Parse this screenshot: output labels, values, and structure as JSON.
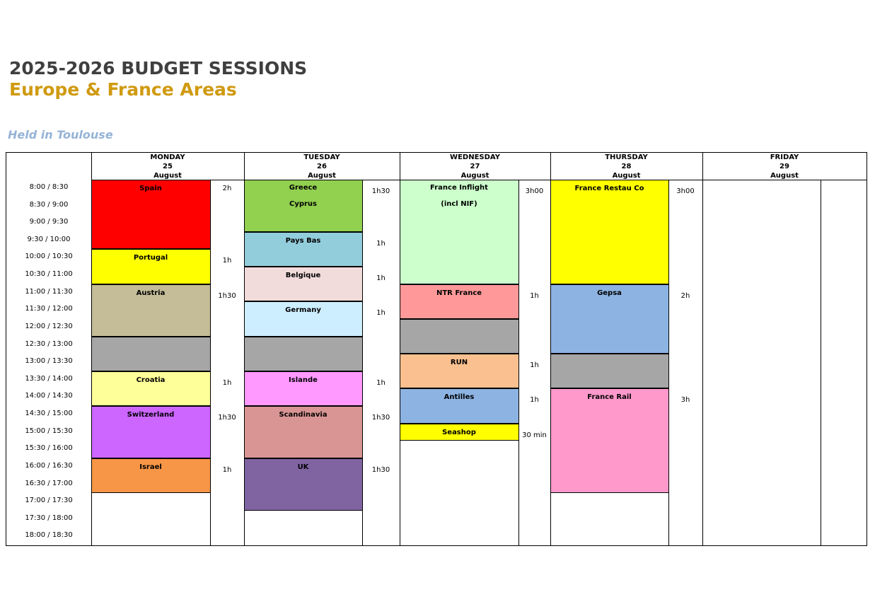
{
  "title": "2025-2026 BUDGET SESSIONS",
  "subtitle": "Europe & France Areas",
  "location": "Held in Toulouse",
  "times": [
    "8:00 / 8:30",
    "8:30 / 9:00",
    "9:00 / 9:30",
    "9:30 / 10:00",
    "10:00 / 10:30",
    "10:30 / 11:00",
    "11:00 / 11:30",
    "11:30 / 12:00",
    "12:00 / 12:30",
    "12:30 / 13:00",
    "13:00 / 13:30",
    "13:30 / 14:00",
    "14:00 / 14:30",
    "14:30 / 15:00",
    "15:00 / 15:30",
    "15:30 / 16:00",
    "16:00 / 16:30",
    "16:30 / 17:00",
    "17:00 / 17:30",
    "17:30 / 18:00",
    "18:00 / 18:30"
  ],
  "days": [
    {
      "day": "MONDAY",
      "date": "25",
      "month": "August",
      "sessions": [
        {
          "lines": [
            "Spain"
          ],
          "start": "8:00",
          "end": "10:00",
          "duration": "2h",
          "color": "#ff0000"
        },
        {
          "lines": [
            "Portugal"
          ],
          "start": "10:00",
          "end": "11:00",
          "duration": "1h",
          "color": "#ffff00"
        },
        {
          "lines": [
            "Austria"
          ],
          "start": "11:00",
          "end": "12:30",
          "duration": "1h30",
          "color": "#c4bd97"
        },
        {
          "lines": [],
          "start": "12:30",
          "end": "13:30",
          "duration": "",
          "color": "#a6a6a6"
        },
        {
          "lines": [
            "Croatia"
          ],
          "start": "13:30",
          "end": "14:30",
          "duration": "1h",
          "color": "#ffff99"
        },
        {
          "lines": [
            "Switzerland"
          ],
          "start": "14:30",
          "end": "16:00",
          "duration": "1h30",
          "color": "#cc66ff"
        },
        {
          "lines": [
            "Israel"
          ],
          "start": "16:00",
          "end": "17:00",
          "duration": "1h",
          "color": "#f79646"
        }
      ]
    },
    {
      "day": "TUESDAY",
      "date": "26",
      "month": "August",
      "sessions": [
        {
          "lines": [
            "Greece",
            "Cyprus"
          ],
          "start": "8:00",
          "end": "9:30",
          "duration": "1h30",
          "color": "#92d050"
        },
        {
          "lines": [
            "Pays Bas"
          ],
          "start": "9:30",
          "end": "10:30",
          "duration": "1h",
          "color": "#92cddc"
        },
        {
          "lines": [
            "Belgique"
          ],
          "start": "10:30",
          "end": "11:30",
          "duration": "1h",
          "color": "#f2dcdb"
        },
        {
          "lines": [
            "Germany"
          ],
          "start": "11:30",
          "end": "12:30",
          "duration": "1h",
          "color": "#cceeff"
        },
        {
          "lines": [],
          "start": "12:30",
          "end": "13:30",
          "duration": "",
          "color": "#a6a6a6"
        },
        {
          "lines": [
            "Islande"
          ],
          "start": "13:30",
          "end": "14:30",
          "duration": "1h",
          "color": "#ff99ff"
        },
        {
          "lines": [
            "Scandinavia"
          ],
          "start": "14:30",
          "end": "16:00",
          "duration": "1h30",
          "color": "#d99594"
        },
        {
          "lines": [
            "UK"
          ],
          "start": "16:00",
          "end": "17:30",
          "duration": "1h30",
          "color": "#8064a2"
        }
      ]
    },
    {
      "day": "WEDNESDAY",
      "date": "27",
      "month": "August",
      "sessions": [
        {
          "lines": [
            "France Inflight",
            "(incl NIF)"
          ],
          "start": "8:00",
          "end": "11:00",
          "duration": "3h00",
          "color": "#ccffcc"
        },
        {
          "lines": [
            "NTR France"
          ],
          "start": "11:00",
          "end": "12:00",
          "duration": "1h",
          "color": "#ff9999"
        },
        {
          "lines": [],
          "start": "12:00",
          "end": "13:00",
          "duration": "",
          "color": "#a6a6a6"
        },
        {
          "lines": [
            "RUN"
          ],
          "start": "13:00",
          "end": "14:00",
          "duration": "1h",
          "color": "#fac090"
        },
        {
          "lines": [
            "Antilles"
          ],
          "start": "14:00",
          "end": "15:00",
          "duration": "1h",
          "color": "#8db3e2"
        },
        {
          "lines": [
            "Seashop"
          ],
          "start": "15:00",
          "end": "15:30",
          "duration": "30 min",
          "color": "#ffff00"
        }
      ]
    },
    {
      "day": "THURSDAY",
      "date": "28",
      "month": "August",
      "sessions": [
        {
          "lines": [
            "France Restau Co"
          ],
          "start": "8:00",
          "end": "11:00",
          "duration": "3h00",
          "color": "#ffff00"
        },
        {
          "lines": [
            "Gepsa"
          ],
          "start": "11:00",
          "end": "13:00",
          "duration": "2h",
          "color": "#8db3e2"
        },
        {
          "lines": [],
          "start": "13:00",
          "end": "14:00",
          "duration": "",
          "color": "#a6a6a6"
        },
        {
          "lines": [
            "France Rail"
          ],
          "start": "14:00",
          "end": "17:00",
          "duration": "3h",
          "color": "#ff99cc"
        }
      ]
    },
    {
      "day": "FRIDAY",
      "date": "29",
      "month": "August",
      "sessions": []
    }
  ]
}
